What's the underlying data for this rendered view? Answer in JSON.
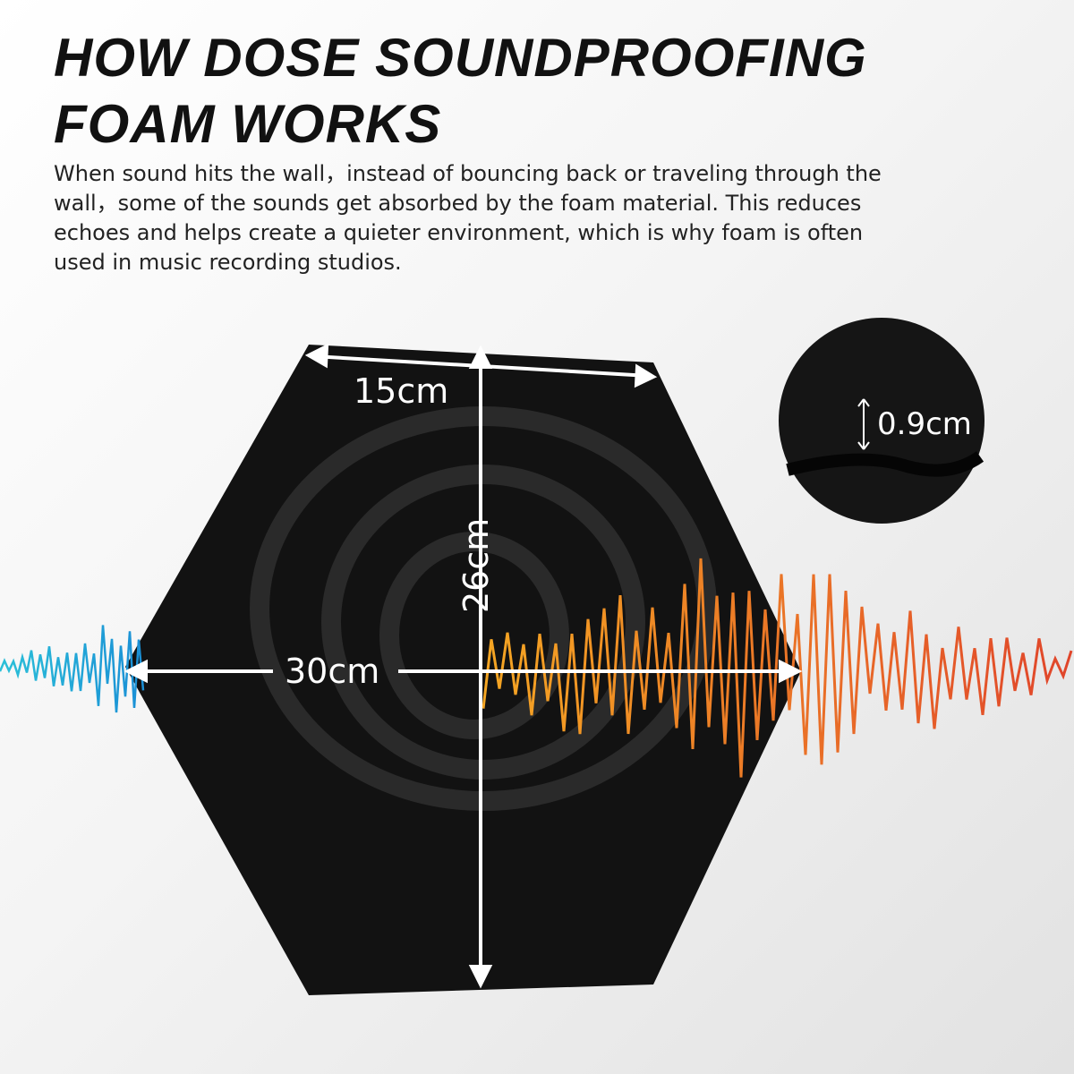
{
  "title": "HOW DOSE SOUNDPROOFING FOAM WORKS",
  "description": "When sound hits the wall，instead of bouncing back or traveling through the wall，some of the sounds get absorbed by the foam material. This reduces echoes and helps create a quieter environment, which is why foam is often used in music recording studios.",
  "dimensions": {
    "edge": "15cm",
    "height": "26cm",
    "width": "30cm",
    "thickness": "0.9cm"
  },
  "colors": {
    "panel": "#111111",
    "wave_in": "#1aa6d6",
    "wave_out_start": "#f5a623",
    "wave_out_end": "#e0452a"
  }
}
